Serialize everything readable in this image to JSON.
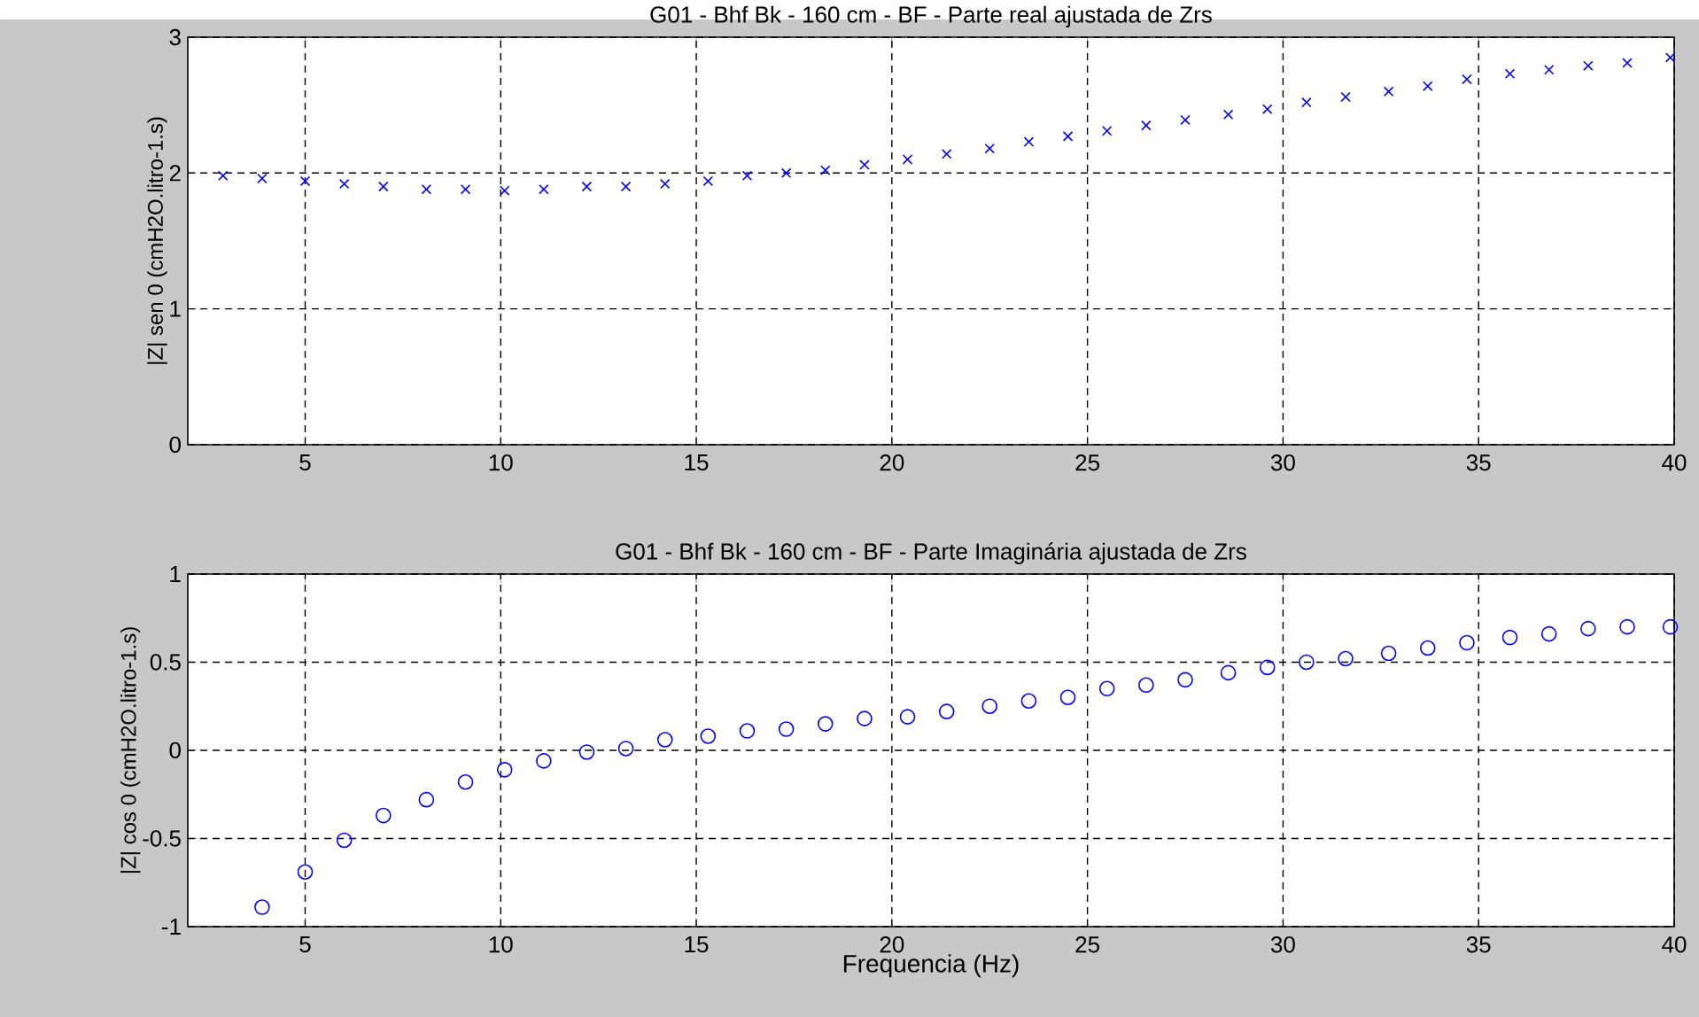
{
  "chart_data": [
    {
      "type": "scatter",
      "title": "G01 - Bhf Bk - 160 cm - BF - Parte real ajustada de Zrs",
      "ylabel": "|Z| sen 0 (cmH2O.litro-1.s)",
      "color": "#0000ff",
      "marker": "cross",
      "grid": true,
      "xlim": [
        2,
        40
      ],
      "ylim": [
        0,
        3
      ],
      "xticks": [
        5,
        10,
        15,
        20,
        25,
        30,
        35,
        40
      ],
      "yticks": [
        0,
        1,
        2,
        3
      ],
      "x": [
        2.9,
        3.9,
        5.0,
        6.0,
        7.0,
        8.1,
        9.1,
        10.1,
        11.1,
        12.2,
        13.2,
        14.2,
        15.3,
        16.3,
        17.3,
        18.3,
        19.3,
        20.4,
        21.4,
        22.5,
        23.5,
        24.5,
        25.5,
        26.5,
        27.5,
        28.6,
        29.6,
        30.6,
        31.6,
        32.7,
        33.7,
        34.7,
        35.8,
        36.8,
        37.8,
        38.8,
        39.9
      ],
      "values": [
        1.98,
        1.96,
        1.94,
        1.92,
        1.9,
        1.88,
        1.88,
        1.87,
        1.88,
        1.9,
        1.9,
        1.92,
        1.94,
        1.98,
        2.0,
        2.02,
        2.06,
        2.1,
        2.14,
        2.18,
        2.23,
        2.27,
        2.31,
        2.35,
        2.39,
        2.43,
        2.47,
        2.52,
        2.56,
        2.6,
        2.64,
        2.69,
        2.73,
        2.76,
        2.79,
        2.81,
        2.85
      ]
    },
    {
      "type": "scatter",
      "title": "G01 - Bhf Bk - 160 cm - BF - Parte Imaginária ajustada de Zrs",
      "xlabel": "Frequencia (Hz)",
      "ylabel": "|Z| cos 0 (cmH2O.litro-1.s)",
      "color": "#0000ff",
      "marker": "circle",
      "grid": true,
      "xlim": [
        2,
        40
      ],
      "ylim": [
        -1,
        1
      ],
      "xticks": [
        5,
        10,
        15,
        20,
        25,
        30,
        35,
        40
      ],
      "yticks": [
        -1,
        -0.5,
        0,
        0.5,
        1
      ],
      "x": [
        3.9,
        5.0,
        6.0,
        7.0,
        8.1,
        9.1,
        10.1,
        11.1,
        12.2,
        13.2,
        14.2,
        15.3,
        16.3,
        17.3,
        18.3,
        19.3,
        20.4,
        21.4,
        22.5,
        23.5,
        24.5,
        25.5,
        26.5,
        27.5,
        28.6,
        29.6,
        30.6,
        31.6,
        32.7,
        33.7,
        34.7,
        35.8,
        36.8,
        37.8,
        38.8,
        39.9
      ],
      "values": [
        -0.89,
        -0.69,
        -0.51,
        -0.37,
        -0.28,
        -0.18,
        -0.11,
        -0.06,
        -0.01,
        0.01,
        0.06,
        0.08,
        0.11,
        0.12,
        0.15,
        0.18,
        0.19,
        0.22,
        0.25,
        0.28,
        0.3,
        0.35,
        0.37,
        0.4,
        0.44,
        0.47,
        0.5,
        0.52,
        0.55,
        0.58,
        0.61,
        0.64,
        0.66,
        0.69,
        0.7,
        0.7
      ]
    }
  ]
}
